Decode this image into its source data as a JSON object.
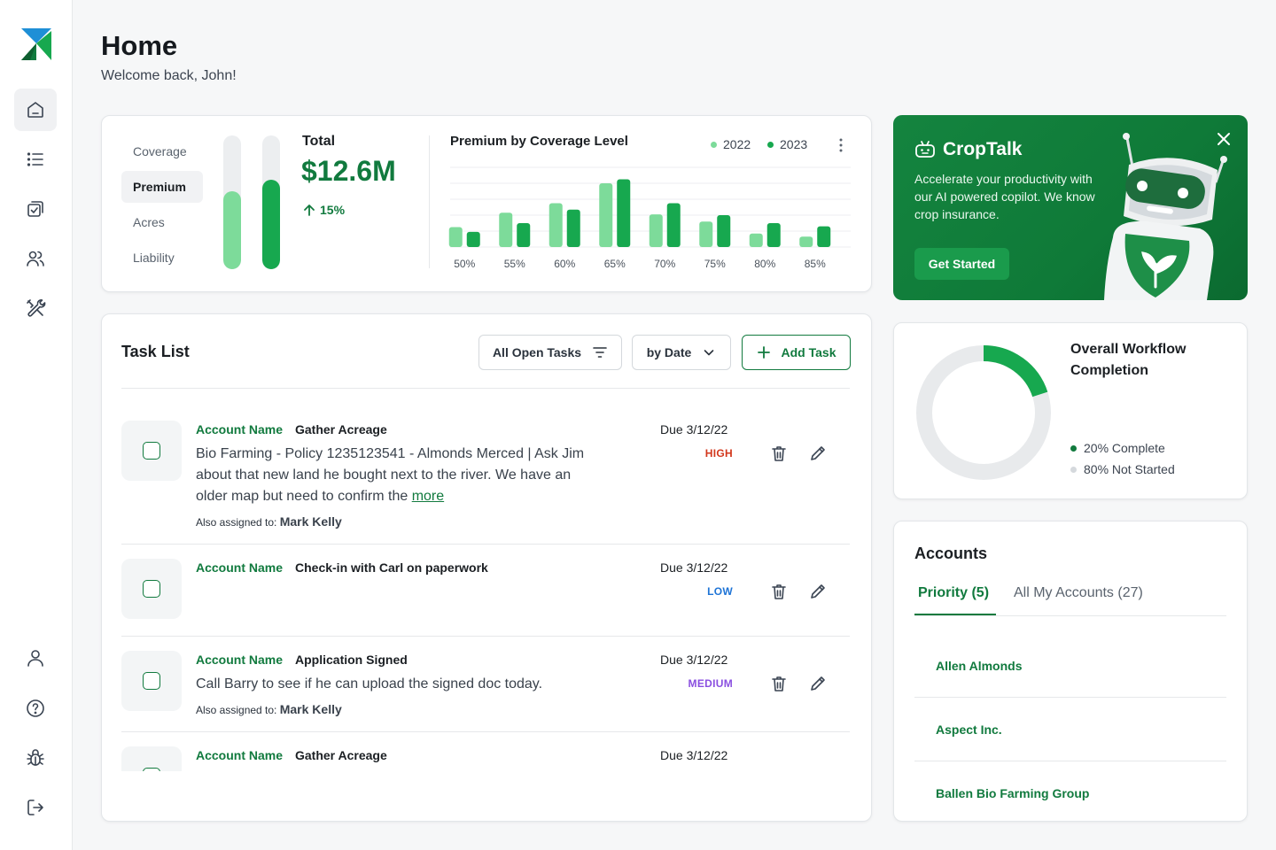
{
  "header": {
    "title": "Home",
    "welcome": "Welcome back, John!"
  },
  "sidebar": {
    "logo": "app-logo",
    "top_items": [
      "home-icon",
      "list-icon",
      "tasks-icon",
      "users-icon",
      "tools-icon"
    ],
    "bottom_items": [
      "profile-icon",
      "help-icon",
      "bug-icon",
      "logout-icon"
    ],
    "active": "home-icon"
  },
  "premium_card": {
    "metric_tabs": [
      "Coverage",
      "Premium",
      "Acres",
      "Liability"
    ],
    "active_tab": "Premium",
    "mini_bars": [
      0.58,
      0.67
    ],
    "total_label": "Total",
    "total_value": "$12.6M",
    "total_change": "15%"
  },
  "chart_data": {
    "type": "bar",
    "title": "Premium by Coverage Level",
    "categories": [
      "50%",
      "55%",
      "60%",
      "65%",
      "70%",
      "75%",
      "80%",
      "85%"
    ],
    "series": [
      {
        "name": "2022",
        "color": "#7ddb9a",
        "values": [
          25,
          43,
          55,
          80,
          41,
          32,
          17,
          13
        ]
      },
      {
        "name": "2023",
        "color": "#17a84f",
        "values": [
          19,
          30,
          47,
          85,
          55,
          40,
          30,
          26
        ]
      }
    ],
    "ylim": [
      0,
      100
    ],
    "grid": true,
    "legend": "top-right"
  },
  "croptalk": {
    "title": "CropTalk",
    "description": "Accelerate your productivity with our AI powered copilot. We know crop insurance.",
    "button": "Get Started"
  },
  "workflow": {
    "title": "Overall Workflow Completion",
    "complete_pct": 20,
    "complete_label": "20% Complete",
    "not_started_label": "80% Not Started",
    "colors": {
      "complete": "#17a84f",
      "not_started": "#e8eaec"
    }
  },
  "task_list": {
    "title": "Task List",
    "filter_label": "All Open Tasks",
    "sort_label": "by Date",
    "add_label": "Add Task",
    "assigned_prefix": "Also assigned to:",
    "tasks": [
      {
        "account": "Account Name",
        "name": "Gather Acreage",
        "desc": "Bio Farming - Policy 1235123541 - Almonds Merced | Ask Jim about that new land he bought next to the river. We have an older map but need to confirm the",
        "more": "more",
        "assigned": "Mark Kelly",
        "due": "Due 3/12/22",
        "priority": "HIGH",
        "priority_color": "#d2371c"
      },
      {
        "account": "Account Name",
        "name": "Check-in with Carl on paperwork",
        "desc": "",
        "more": "",
        "assigned": "",
        "due": "Due 3/12/22",
        "priority": "LOW",
        "priority_color": "#1e74d6"
      },
      {
        "account": "Account Name",
        "name": "Application Signed",
        "desc": "Call Barry to see if he can upload the signed doc today.",
        "more": "",
        "assigned": "Mark Kelly",
        "due": "Due 3/12/22",
        "priority": "MEDIUM",
        "priority_color": "#8a4fe0"
      },
      {
        "account": "Account Name",
        "name": "Gather Acreage",
        "desc": "",
        "more": "",
        "assigned": "",
        "due": "Due 3/12/22",
        "priority": "",
        "priority_color": "#d2371c"
      }
    ]
  },
  "accounts": {
    "title": "Accounts",
    "tabs": [
      "Priority (5)",
      "All My Accounts (27)"
    ],
    "active_tab": "Priority (5)",
    "items": [
      "Allen Almonds",
      "Aspect Inc.",
      "Ballen Bio Farming Group"
    ]
  }
}
